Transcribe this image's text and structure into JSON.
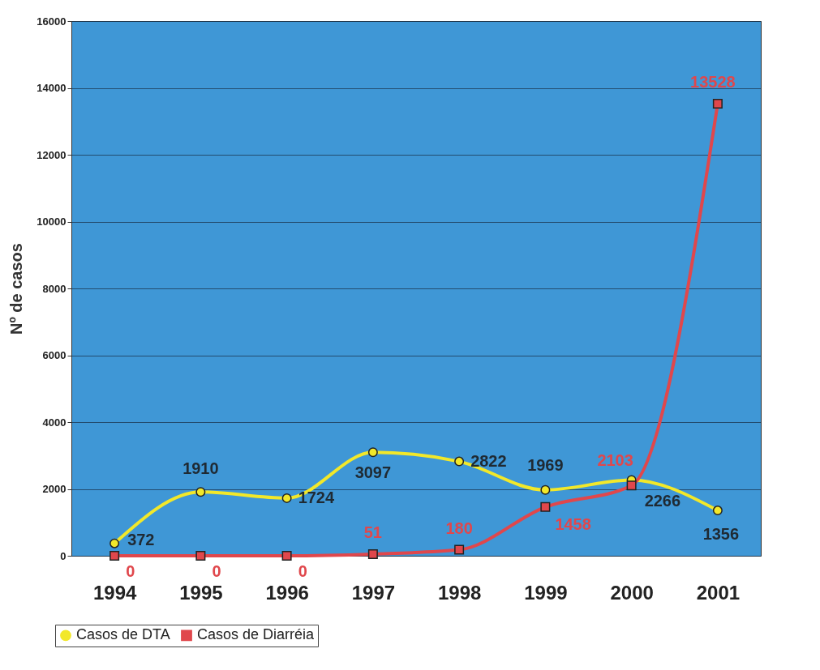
{
  "chart_data": {
    "type": "line",
    "ylabel": "Nº de casos",
    "categories": [
      "1994",
      "1995",
      "1996",
      "1997",
      "1998",
      "1999",
      "2000",
      "2001"
    ],
    "series": [
      {
        "name": "Casos de DTA",
        "color": "#f2e82a",
        "marker": "circle",
        "values": [
          372,
          1910,
          1724,
          3097,
          2822,
          1969,
          2266,
          1356
        ]
      },
      {
        "name": "Casos de Diarréia",
        "color": "#e0474c",
        "marker": "square",
        "values": [
          0,
          0,
          0,
          51,
          180,
          1458,
          2103,
          13528
        ]
      }
    ],
    "ylim": [
      0,
      16000
    ],
    "yticks": [
      0,
      2000,
      4000,
      6000,
      8000,
      10000,
      12000,
      14000,
      16000
    ],
    "grid": true,
    "legend": "bottom left",
    "data_labels": true
  }
}
